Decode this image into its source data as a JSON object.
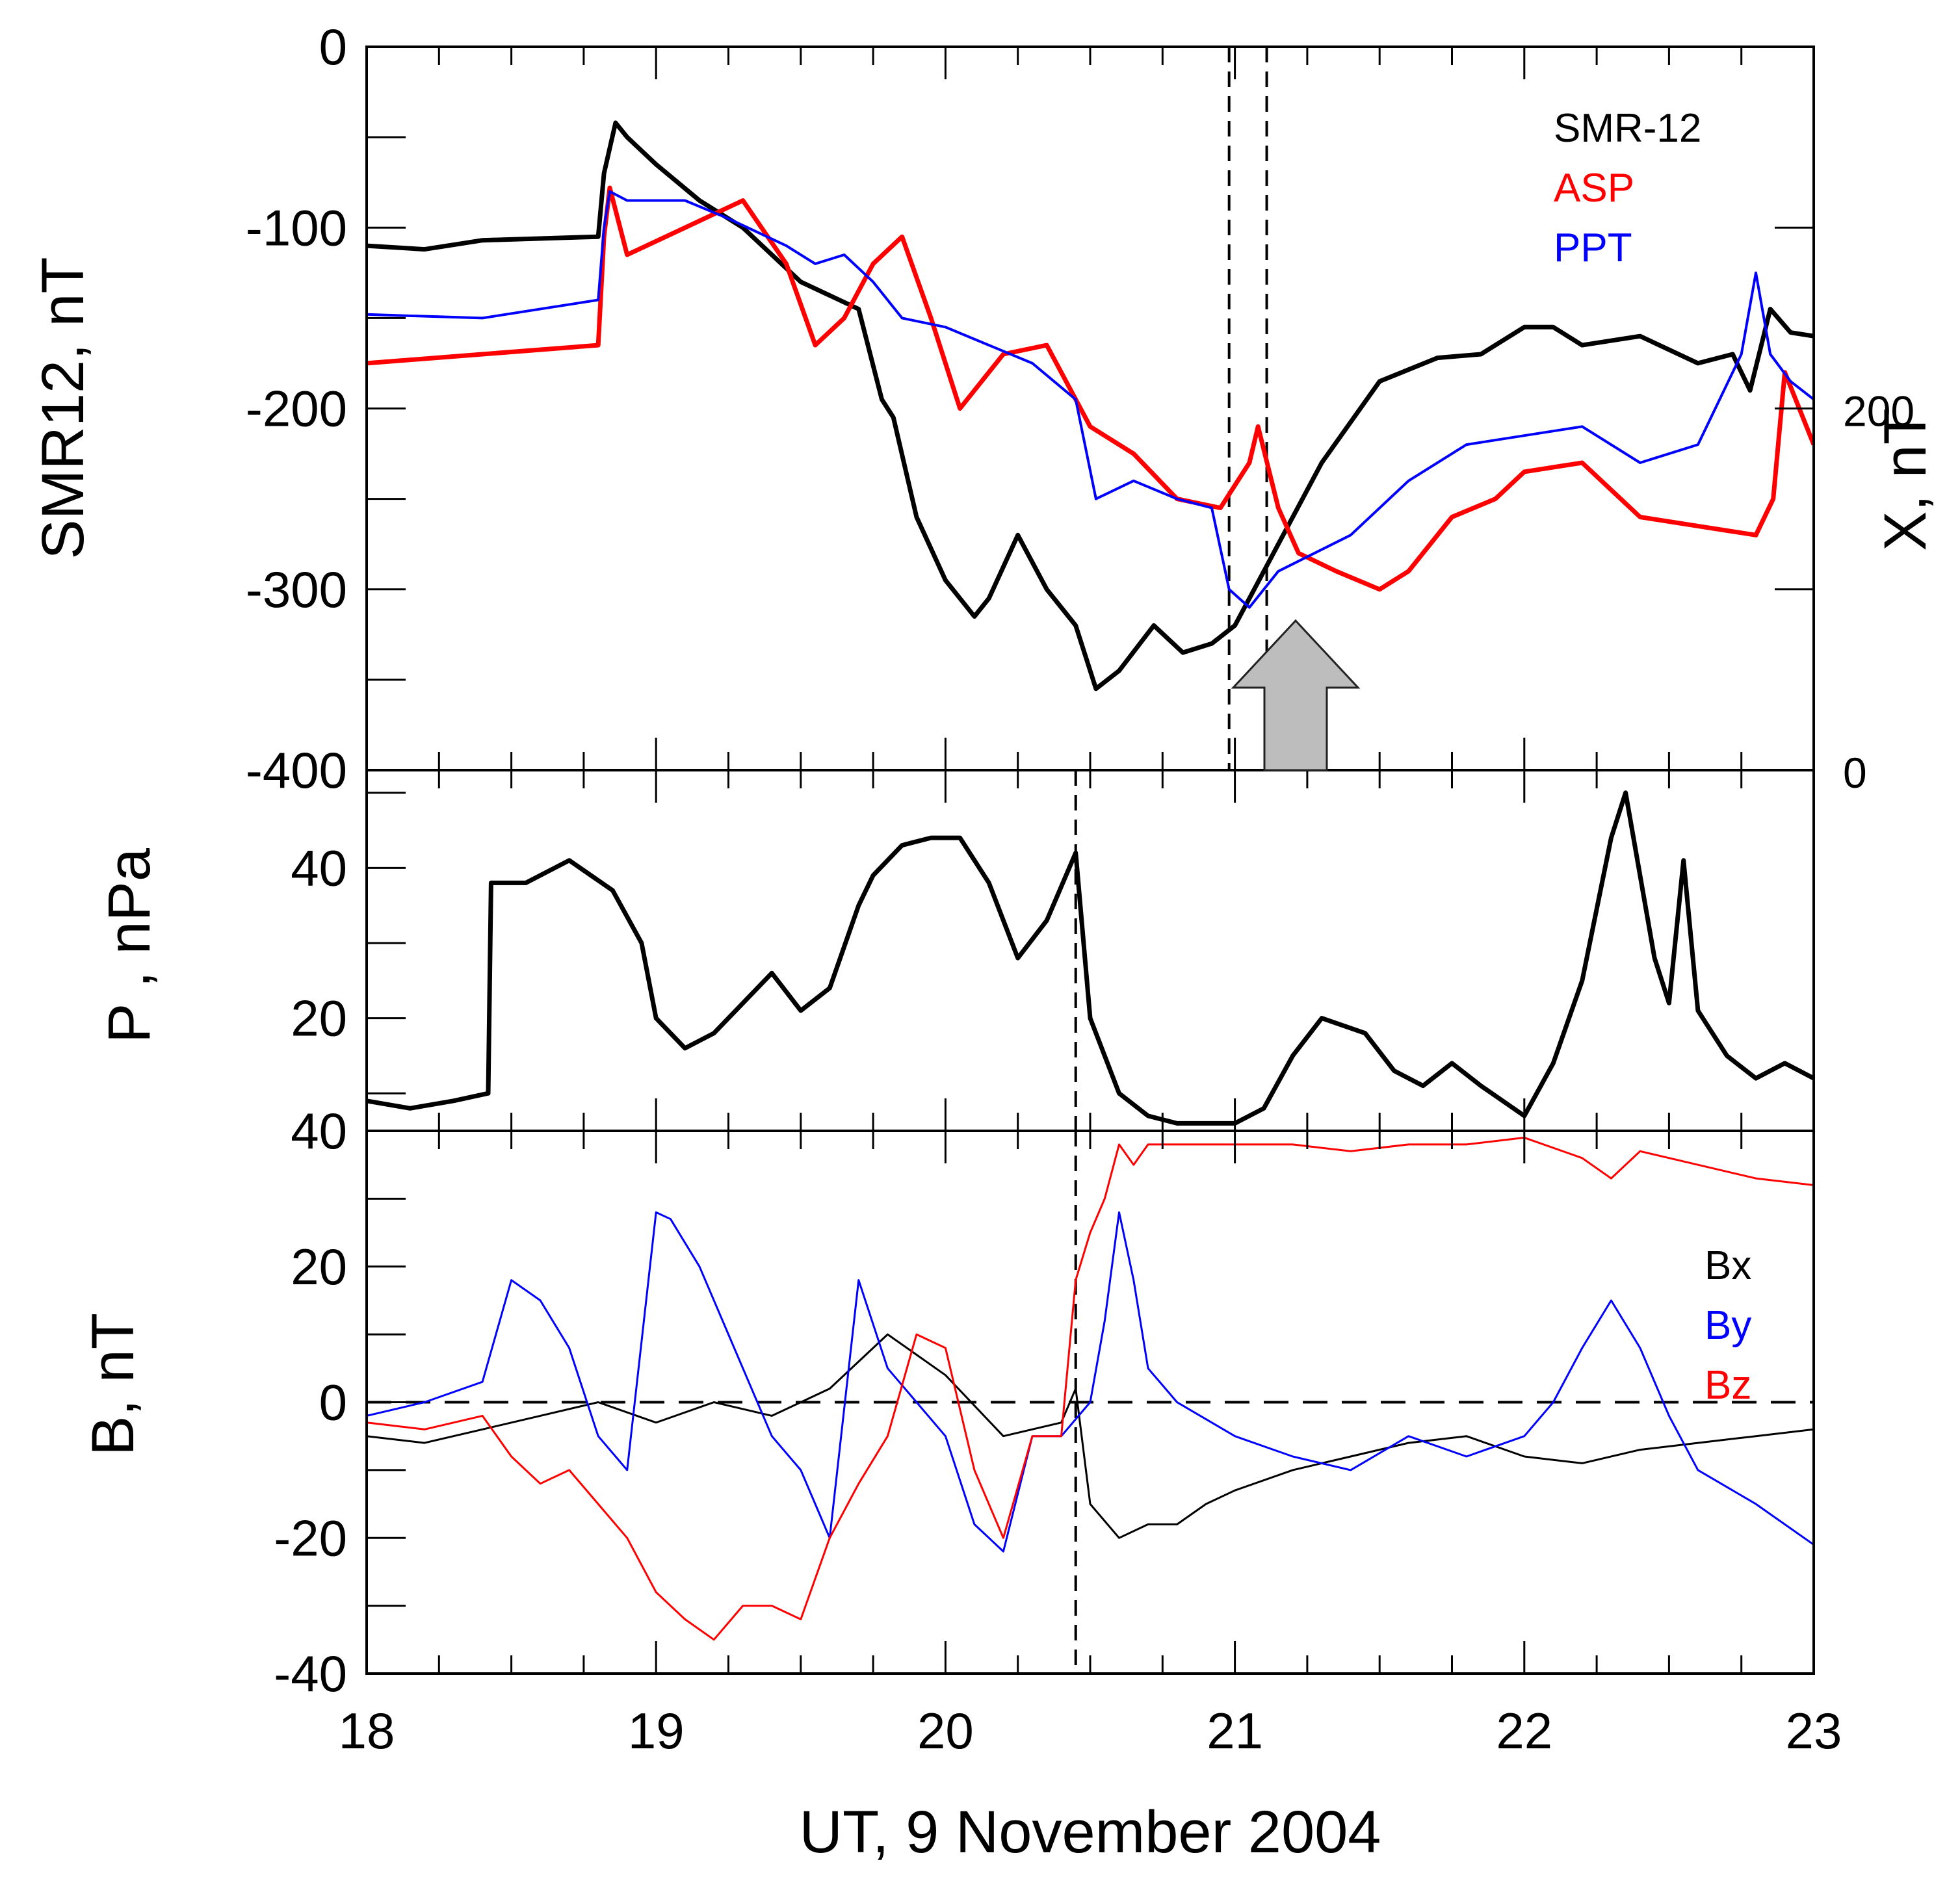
{
  "chart_data": [
    {
      "type": "line",
      "panel": "top",
      "ylabel": "SMR12, nT",
      "ylabel_right": "X, nT",
      "ylim": [
        -400,
        0
      ],
      "yticks": [
        "0",
        "-100",
        "-200",
        "-300",
        "-400"
      ],
      "ylim_right": [
        0,
        400
      ],
      "yticks_right": [
        "200",
        "0"
      ],
      "xlim": [
        18,
        23
      ],
      "vlines": [
        20.98,
        21.11
      ],
      "annotation": "gray upward arrow at ~21.2 UT",
      "legend": [
        "SMR-12",
        "ASP",
        "PPT"
      ],
      "series": [
        {
          "name": "SMR-12",
          "color": "#000000",
          "x": [
            18.0,
            18.2,
            18.4,
            18.8,
            18.82,
            18.86,
            18.9,
            19.0,
            19.15,
            19.3,
            19.5,
            19.7,
            19.78,
            19.82,
            19.9,
            20.0,
            20.1,
            20.15,
            20.25,
            20.35,
            20.45,
            20.52,
            20.6,
            20.72,
            20.82,
            20.92,
            21.0,
            21.05,
            21.15,
            21.3,
            21.5,
            21.7,
            21.85,
            22.0,
            22.1,
            22.2,
            22.4,
            22.6,
            22.72,
            22.78,
            22.85,
            22.92,
            23.0
          ],
          "values": [
            -110,
            -112,
            -107,
            -105,
            -70,
            -42,
            -50,
            -65,
            -85,
            -100,
            -130,
            -145,
            -195,
            -205,
            -260,
            -295,
            -315,
            -305,
            -270,
            -300,
            -320,
            -355,
            -345,
            -320,
            -335,
            -330,
            -320,
            -305,
            -275,
            -230,
            -185,
            -172,
            -170,
            -155,
            -155,
            -165,
            -160,
            -175,
            -170,
            -190,
            -145,
            -158,
            -160
          ]
        },
        {
          "name": "ASP",
          "color": "#ff0000",
          "x": [
            18.0,
            18.4,
            18.8,
            18.82,
            18.84,
            18.9,
            19.1,
            19.3,
            19.45,
            19.55,
            19.65,
            19.75,
            19.85,
            19.95,
            20.05,
            20.2,
            20.35,
            20.5,
            20.65,
            20.8,
            20.95,
            21.05,
            21.08,
            21.15,
            21.22,
            21.35,
            21.5,
            21.6,
            21.75,
            21.9,
            22.0,
            22.2,
            22.4,
            22.6,
            22.8,
            22.86,
            22.9,
            23.0
          ],
          "values": [
            -175,
            -170,
            -165,
            -105,
            -78,
            -115,
            -100,
            -85,
            -120,
            -165,
            -150,
            -120,
            -105,
            -150,
            -200,
            -170,
            -165,
            -210,
            -225,
            -250,
            -255,
            -230,
            -210,
            -255,
            -280,
            -290,
            -300,
            -290,
            -260,
            -250,
            -235,
            -230,
            -260,
            -265,
            -270,
            -250,
            -180,
            -220
          ]
        },
        {
          "name": "PPT",
          "color": "#0000ff",
          "x": [
            18.0,
            18.4,
            18.8,
            18.82,
            18.84,
            18.9,
            19.1,
            19.25,
            19.45,
            19.55,
            19.65,
            19.75,
            19.85,
            20.0,
            20.3,
            20.45,
            20.52,
            20.65,
            20.8,
            20.92,
            20.98,
            21.05,
            21.15,
            21.4,
            21.6,
            21.8,
            22.0,
            22.2,
            22.4,
            22.6,
            22.75,
            22.8,
            22.85,
            22.92,
            23.0
          ],
          "values": [
            -148,
            -150,
            -140,
            -100,
            -80,
            -85,
            -85,
            -95,
            -110,
            -120,
            -115,
            -130,
            -150,
            -155,
            -175,
            -195,
            -250,
            -240,
            -250,
            -255,
            -300,
            -310,
            -290,
            -270,
            -240,
            -220,
            -215,
            -210,
            -230,
            -220,
            -170,
            -125,
            -170,
            -185,
            -195
          ]
        }
      ]
    },
    {
      "type": "line",
      "panel": "middle",
      "ylabel": "P , nPa",
      "ylim": [
        5,
        53
      ],
      "yticks": [
        "40",
        "20"
      ],
      "xlim": [
        18,
        23
      ],
      "vlines": [
        20.45
      ],
      "series": [
        {
          "name": "P",
          "color": "#000000",
          "x": [
            18.0,
            18.15,
            18.3,
            18.42,
            18.43,
            18.55,
            18.7,
            18.85,
            18.95,
            19.0,
            19.1,
            19.2,
            19.3,
            19.4,
            19.5,
            19.6,
            19.7,
            19.75,
            19.85,
            19.95,
            20.05,
            20.15,
            20.25,
            20.35,
            20.45,
            20.5,
            20.6,
            20.7,
            20.8,
            21.0,
            21.1,
            21.2,
            21.3,
            21.45,
            21.55,
            21.65,
            21.75,
            21.85,
            22.0,
            22.1,
            22.2,
            22.3,
            22.35,
            22.45,
            22.5,
            22.55,
            22.6,
            22.7,
            22.8,
            22.9,
            23.0
          ],
          "values": [
            9,
            8,
            9,
            10,
            38,
            38,
            41,
            37,
            30,
            20,
            16,
            18,
            22,
            26,
            21,
            24,
            35,
            39,
            43,
            44,
            44,
            38,
            28,
            33,
            42,
            20,
            10,
            7,
            6,
            6,
            8,
            15,
            20,
            18,
            13,
            11,
            14,
            11,
            7,
            14,
            25,
            44,
            50,
            28,
            22,
            41,
            21,
            15,
            12,
            14,
            12
          ]
        }
      ]
    },
    {
      "type": "line",
      "panel": "bottom",
      "ylabel": "B, nT",
      "xlabel": "UT, 9 November 2004",
      "ylim": [
        -40,
        40
      ],
      "yticks": [
        "40",
        "20",
        "0",
        "-20",
        "-40"
      ],
      "xticks": [
        "18",
        "19",
        "20",
        "21",
        "22",
        "23"
      ],
      "xlim": [
        18,
        23
      ],
      "vlines": [
        20.45
      ],
      "hlines": [
        0
      ],
      "legend": [
        "Bx",
        "By",
        "Bz"
      ],
      "series": [
        {
          "name": "Bx",
          "color": "#000000",
          "x": [
            18.0,
            18.2,
            18.4,
            18.6,
            18.8,
            19.0,
            19.2,
            19.4,
            19.6,
            19.8,
            20.0,
            20.2,
            20.4,
            20.45,
            20.5,
            20.6,
            20.7,
            20.8,
            20.9,
            21.0,
            21.2,
            21.4,
            21.6,
            21.8,
            22.0,
            22.2,
            22.4,
            22.6,
            22.8,
            23.0
          ],
          "values": [
            -5,
            -6,
            -4,
            -2,
            0,
            -3,
            0,
            -2,
            2,
            10,
            4,
            -5,
            -3,
            2,
            -15,
            -20,
            -18,
            -18,
            -15,
            -13,
            -10,
            -8,
            -6,
            -5,
            -8,
            -9,
            -7,
            -6,
            -5,
            -4
          ]
        },
        {
          "name": "By",
          "color": "#0000ff",
          "x": [
            18.0,
            18.2,
            18.4,
            18.5,
            18.6,
            18.7,
            18.8,
            18.9,
            19.0,
            19.05,
            19.15,
            19.25,
            19.4,
            19.5,
            19.6,
            19.7,
            19.8,
            19.9,
            20.0,
            20.1,
            20.2,
            20.3,
            20.4,
            20.5,
            20.55,
            20.6,
            20.65,
            20.7,
            20.8,
            21.0,
            21.2,
            21.4,
            21.6,
            21.8,
            22.0,
            22.1,
            22.2,
            22.3,
            22.4,
            22.5,
            22.6,
            22.8,
            23.0
          ],
          "values": [
            -2,
            0,
            3,
            18,
            15,
            8,
            -5,
            -10,
            28,
            27,
            20,
            10,
            -5,
            -10,
            -20,
            18,
            5,
            0,
            -5,
            -18,
            -22,
            -5,
            -5,
            0,
            12,
            28,
            18,
            5,
            0,
            -5,
            -8,
            -10,
            -5,
            -8,
            -5,
            0,
            8,
            15,
            8,
            -2,
            -10,
            -15,
            -21
          ]
        },
        {
          "name": "Bz",
          "color": "#ff0000",
          "x": [
            18.0,
            18.2,
            18.4,
            18.5,
            18.6,
            18.7,
            18.8,
            18.9,
            19.0,
            19.1,
            19.2,
            19.3,
            19.4,
            19.5,
            19.6,
            19.7,
            19.8,
            19.9,
            20.0,
            20.1,
            20.2,
            20.3,
            20.4,
            20.45,
            20.5,
            20.55,
            20.6,
            20.65,
            20.7,
            20.8,
            21.0,
            21.2,
            21.4,
            21.6,
            21.8,
            22.0,
            22.2,
            22.3,
            22.4,
            22.6,
            22.8,
            23.0
          ],
          "values": [
            -3,
            -4,
            -2,
            -8,
            -12,
            -10,
            -15,
            -20,
            -28,
            -32,
            -35,
            -30,
            -30,
            -32,
            -20,
            -12,
            -5,
            10,
            8,
            -10,
            -20,
            -5,
            -5,
            18,
            25,
            30,
            38,
            35,
            38,
            38,
            38,
            38,
            37,
            38,
            38,
            39,
            36,
            33,
            37,
            35,
            33,
            32
          ]
        }
      ]
    }
  ]
}
